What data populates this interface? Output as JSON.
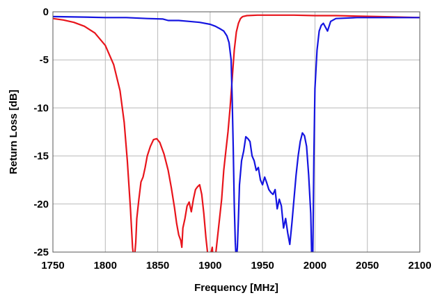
{
  "chart_data": {
    "type": "line",
    "title": "",
    "xlabel": "Frequency [MHz]",
    "ylabel": "Return Loss [dB]",
    "xlim": [
      1750,
      2100
    ],
    "ylim": [
      -25,
      0
    ],
    "x_ticks": [
      1750,
      1800,
      1850,
      1900,
      1950,
      2000,
      2050,
      2100
    ],
    "y_ticks": [
      0,
      -5,
      -10,
      -15,
      -20,
      -25
    ],
    "x_tick_labels": [
      "1750",
      "1800",
      "1850",
      "1900",
      "1950",
      "2000",
      "2050",
      "2100"
    ],
    "y_tick_labels": [
      "0",
      "-5",
      "-10",
      "-15",
      "-20",
      "-25"
    ],
    "grid": true,
    "legend": "none",
    "series": [
      {
        "color": "#e8141b",
        "x": [
          1750,
          1760,
          1770,
          1780,
          1790,
          1800,
          1808,
          1814,
          1818,
          1821,
          1824,
          1826,
          1827.5,
          1829,
          1830,
          1832,
          1834,
          1836,
          1838,
          1840,
          1843,
          1846,
          1849,
          1852,
          1856,
          1860,
          1863,
          1866,
          1868,
          1870,
          1872,
          1873,
          1874,
          1876,
          1878,
          1880,
          1882,
          1884,
          1886,
          1888,
          1890,
          1892,
          1894,
          1896,
          1898,
          1900,
          1901,
          1902,
          1903,
          1905,
          1907,
          1909,
          1911,
          1913,
          1915,
          1917,
          1919,
          1921,
          1923,
          1925,
          1927,
          1929,
          1931,
          1935,
          1945,
          1960,
          1980,
          2000,
          2020,
          2040,
          2060,
          2080,
          2100
        ],
        "y": [
          -0.7,
          -0.85,
          -1.1,
          -1.5,
          -2.2,
          -3.5,
          -5.5,
          -8.2,
          -11.5,
          -15.5,
          -20.5,
          -24.5,
          -26,
          -24,
          -21.5,
          -19.5,
          -17.7,
          -17.2,
          -16.2,
          -15,
          -14,
          -13.3,
          -13.2,
          -13.6,
          -14.8,
          -16.5,
          -18.3,
          -20.4,
          -22,
          -23.2,
          -23.8,
          -24.5,
          -22.5,
          -21.5,
          -20.2,
          -19.8,
          -20.8,
          -19.5,
          -18.5,
          -18.2,
          -18,
          -19,
          -21,
          -23.5,
          -25.5,
          -26,
          -25,
          -24.5,
          -26,
          -25.5,
          -23.5,
          -21.5,
          -19.5,
          -16.5,
          -14.5,
          -12.5,
          -10,
          -7,
          -4,
          -2.1,
          -1.2,
          -0.7,
          -0.5,
          -0.4,
          -0.35,
          -0.35,
          -0.35,
          -0.4,
          -0.4,
          -0.45,
          -0.5,
          -0.55,
          -0.6
        ]
      },
      {
        "color": "#1414e0",
        "x": [
          1750,
          1780,
          1800,
          1820,
          1840,
          1855,
          1860,
          1870,
          1880,
          1890,
          1900,
          1905,
          1910,
          1913,
          1916,
          1918,
          1920,
          1921,
          1922,
          1923,
          1924,
          1925,
          1926,
          1927,
          1928,
          1930,
          1932,
          1934,
          1936,
          1938,
          1940,
          1942,
          1944,
          1946,
          1948,
          1950,
          1952,
          1954,
          1956,
          1958,
          1960,
          1962,
          1964,
          1966,
          1968,
          1970,
          1972,
          1974,
          1976,
          1978,
          1980,
          1982,
          1984,
          1986,
          1988,
          1990,
          1992,
          1994,
          1996,
          1997,
          1998,
          1999,
          2000,
          2002,
          2004,
          2006,
          2008,
          2010,
          2012,
          2015,
          2020,
          2040,
          2060,
          2080,
          2100
        ],
        "y": [
          -0.5,
          -0.55,
          -0.6,
          -0.6,
          -0.7,
          -0.75,
          -0.9,
          -0.9,
          -1.0,
          -1.1,
          -1.3,
          -1.5,
          -1.8,
          -2.0,
          -2.5,
          -3.2,
          -5.0,
          -9.0,
          -14.0,
          -20.0,
          -24.0,
          -26.0,
          -24.5,
          -21.5,
          -18.0,
          -15.5,
          -14.5,
          -13.0,
          -13.2,
          -13.5,
          -15.0,
          -15.5,
          -16.5,
          -16.2,
          -17.5,
          -18.0,
          -17.2,
          -17.8,
          -18.5,
          -18.8,
          -19.0,
          -18.5,
          -20.5,
          -19.5,
          -20.2,
          -22.5,
          -21.5,
          -23.0,
          -24.2,
          -22.0,
          -19.5,
          -17.0,
          -15.0,
          -13.5,
          -12.6,
          -12.9,
          -14.0,
          -17.0,
          -21.0,
          -26.0,
          -25.0,
          -15.0,
          -8.0,
          -4.0,
          -2.0,
          -1.4,
          -1.2,
          -1.6,
          -2.0,
          -1.0,
          -0.7,
          -0.6,
          -0.6,
          -0.6,
          -0.6
        ]
      }
    ]
  }
}
